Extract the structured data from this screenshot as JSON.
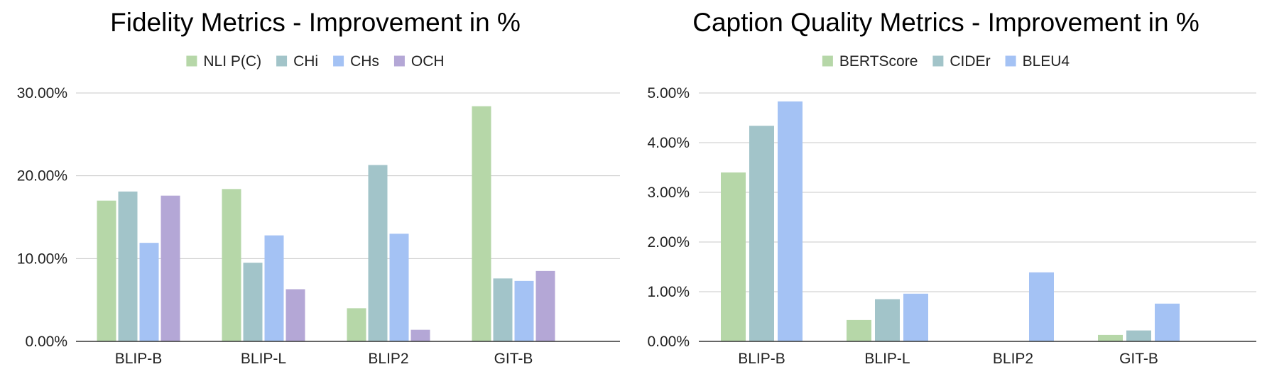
{
  "chart_data": [
    {
      "type": "bar",
      "title": "Fidelity Metrics - Improvement in %",
      "xlabel": "",
      "ylabel": "",
      "categories": [
        "BLIP-B",
        "BLIP-L",
        "BLIP2",
        "GIT-B"
      ],
      "series": [
        {
          "name": "NLI P(C)",
          "color": "#b6d7a8",
          "values": [
            17.0,
            18.4,
            4.0,
            28.4
          ]
        },
        {
          "name": "CHi",
          "color": "#a2c4c9",
          "values": [
            18.1,
            9.5,
            21.3,
            7.6
          ]
        },
        {
          "name": "CHs",
          "color": "#a4c2f4",
          "values": [
            11.9,
            12.8,
            13.0,
            7.3
          ]
        },
        {
          "name": "OCH",
          "color": "#b4a7d6",
          "values": [
            17.6,
            6.3,
            1.4,
            8.5
          ]
        }
      ],
      "ylim": [
        0,
        30
      ],
      "yticks": [
        "0.00%",
        "10.00%",
        "20.00%",
        "30.00%"
      ],
      "ytick_values": [
        0,
        10,
        20,
        30
      ],
      "grid": true,
      "legend": "top-center"
    },
    {
      "type": "bar",
      "title": "Caption Quality Metrics - Improvement in %",
      "xlabel": "",
      "ylabel": "",
      "categories": [
        "BLIP-B",
        "BLIP-L",
        "BLIP2",
        "GIT-B"
      ],
      "series": [
        {
          "name": "BERTScore",
          "color": "#b6d7a8",
          "values": [
            3.4,
            0.43,
            0.0,
            0.13
          ]
        },
        {
          "name": "CIDEr",
          "color": "#a2c4c9",
          "values": [
            4.34,
            0.85,
            0.0,
            0.22
          ]
        },
        {
          "name": "BLEU4",
          "color": "#a4c2f4",
          "values": [
            4.83,
            0.96,
            1.39,
            0.76
          ]
        }
      ],
      "ylim": [
        0,
        5
      ],
      "yticks": [
        "0.00%",
        "1.00%",
        "2.00%",
        "3.00%",
        "4.00%",
        "5.00%"
      ],
      "ytick_values": [
        0,
        1,
        2,
        3,
        4,
        5
      ],
      "grid": true,
      "legend": "top-center"
    }
  ]
}
